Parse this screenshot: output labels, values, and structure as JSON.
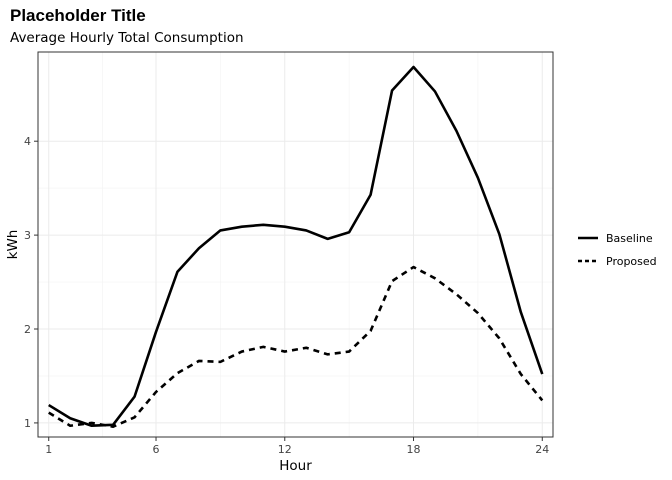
{
  "chart_data": {
    "type": "line",
    "title": "Placeholder Title",
    "subtitle": "Average Hourly Total Consumption",
    "xlabel": "Hour",
    "ylabel": "kWh",
    "xlim": [
      0.5,
      24.5
    ],
    "ylim": [
      0.85,
      4.95
    ],
    "x_ticks": [
      1,
      6,
      12,
      18,
      24
    ],
    "y_ticks": [
      1,
      2,
      3,
      4
    ],
    "grid": true,
    "legend_position": "right",
    "x": [
      1,
      2,
      3,
      4,
      5,
      6,
      7,
      8,
      9,
      10,
      11,
      12,
      13,
      14,
      15,
      16,
      17,
      18,
      19,
      20,
      21,
      22,
      23,
      24
    ],
    "series": [
      {
        "name": "Baseline",
        "line_style": "solid",
        "color": "#000000",
        "values": [
          1.19,
          1.05,
          0.97,
          0.98,
          1.28,
          1.97,
          2.61,
          2.86,
          3.05,
          3.09,
          3.11,
          3.09,
          3.05,
          2.96,
          3.03,
          3.43,
          4.54,
          4.79,
          4.53,
          4.11,
          3.61,
          3.01,
          2.18,
          1.52
        ]
      },
      {
        "name": "Proposed",
        "line_style": "dashed",
        "color": "#000000",
        "values": [
          1.11,
          0.97,
          1.0,
          0.96,
          1.06,
          1.33,
          1.53,
          1.66,
          1.65,
          1.76,
          1.81,
          1.76,
          1.8,
          1.73,
          1.76,
          1.98,
          2.51,
          2.66,
          2.54,
          2.37,
          2.17,
          1.9,
          1.52,
          1.24
        ]
      }
    ]
  }
}
